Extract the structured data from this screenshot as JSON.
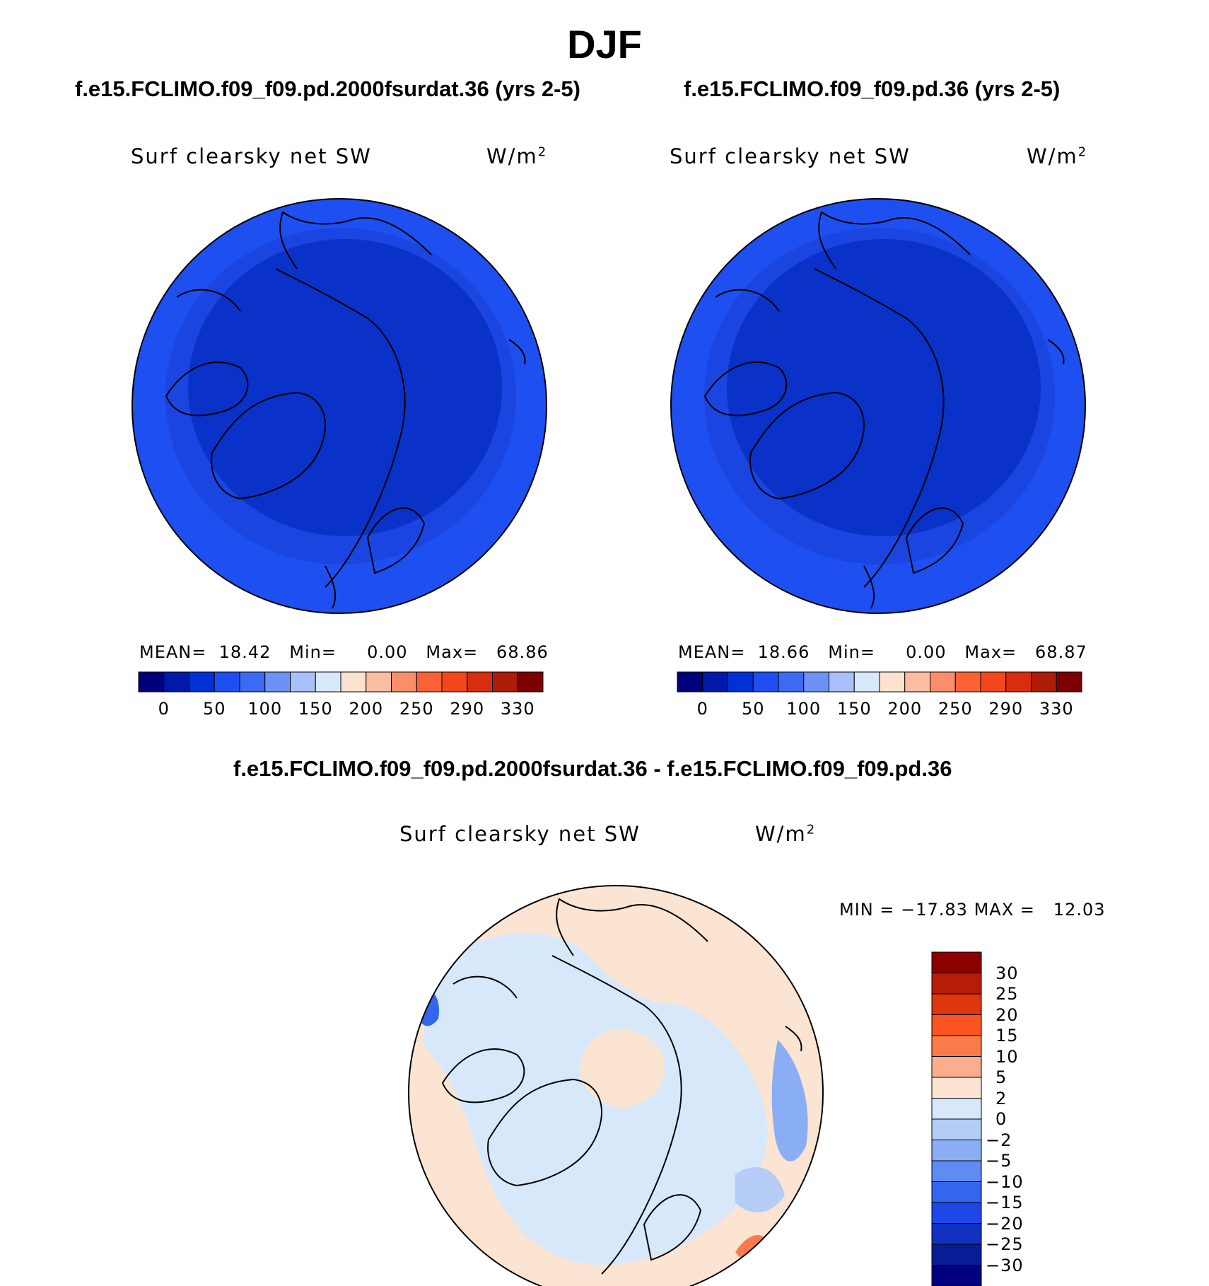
{
  "figure": {
    "season": "DJF",
    "variable": "Surf clearsky net SW",
    "units_base": "W/m",
    "units_exp": "2"
  },
  "panels": [
    {
      "case": "f.e15.FCLIMO.f09_f09.pd.2000fsurdat.36 (yrs 2-5)",
      "mean_label": "MEAN=",
      "mean": "18.42",
      "min_label": "Min=",
      "min": "0.00",
      "max_label": "Max=",
      "max": "68.86"
    },
    {
      "case": "f.e15.FCLIMO.f09_f09.pd.36 (yrs 2-5)",
      "mean_label": "MEAN=",
      "mean": "18.66",
      "min_label": "Min=",
      "min": "0.00",
      "max_label": "Max=",
      "max": "68.87"
    }
  ],
  "panel_colorbar": {
    "colors": [
      "#00007d",
      "#0019a8",
      "#0031d4",
      "#1e4ff0",
      "#3c6af2",
      "#6c92f6",
      "#a9c0fa",
      "#d8e8fc",
      "#fce3cf",
      "#fbbd9f",
      "#fa8e6a",
      "#fa6236",
      "#f4461d",
      "#d92e0d",
      "#ad1c04",
      "#7d0000"
    ],
    "tick_labels": [
      "0",
      "50",
      "100",
      "150",
      "200",
      "250",
      "290",
      "330"
    ]
  },
  "difference": {
    "title": "f.e15.FCLIMO.f09_f09.pd.2000fsurdat.36 - f.e15.FCLIMO.f09_f09.pd.36",
    "min_label": "MIN =",
    "min": "−17.83",
    "max_label": "MAX =",
    "max": "12.03"
  },
  "diff_colorbar": {
    "colors_top_to_bottom": [
      "#8c0000",
      "#b71c06",
      "#de360f",
      "#fa5422",
      "#fa7b49",
      "#fbad8c",
      "#fbe4d2",
      "#d7e8fb",
      "#b4ccf6",
      "#8aaef4",
      "#5f8cf1",
      "#3366ef",
      "#1d47e6",
      "#1030bf",
      "#081c95",
      "#000080"
    ],
    "levels": [
      "30",
      "25",
      "20",
      "15",
      "10",
      "5",
      "2",
      "0",
      "−2",
      "−5",
      "−10",
      "−15",
      "−20",
      "−25",
      "−30"
    ]
  }
}
